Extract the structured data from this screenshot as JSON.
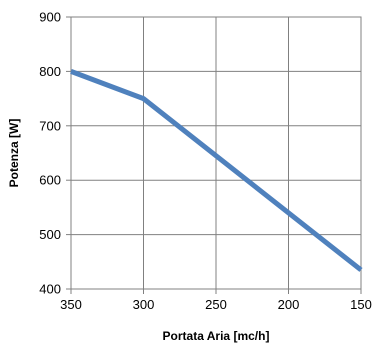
{
  "chart_data": {
    "type": "line",
    "xlabel": "Portata Aria [mc/h]",
    "ylabel": "Potenza [W]",
    "x_reversed": true,
    "xlim": [
      350,
      150
    ],
    "ylim": [
      400,
      900
    ],
    "x_ticks": [
      350,
      300,
      250,
      200,
      150
    ],
    "y_ticks": [
      400,
      500,
      600,
      700,
      800,
      900
    ],
    "grid": true,
    "series": [
      {
        "x": [
          350,
          300,
          150
        ],
        "y": [
          800,
          750,
          435
        ],
        "color": "#4f81bd"
      }
    ]
  }
}
